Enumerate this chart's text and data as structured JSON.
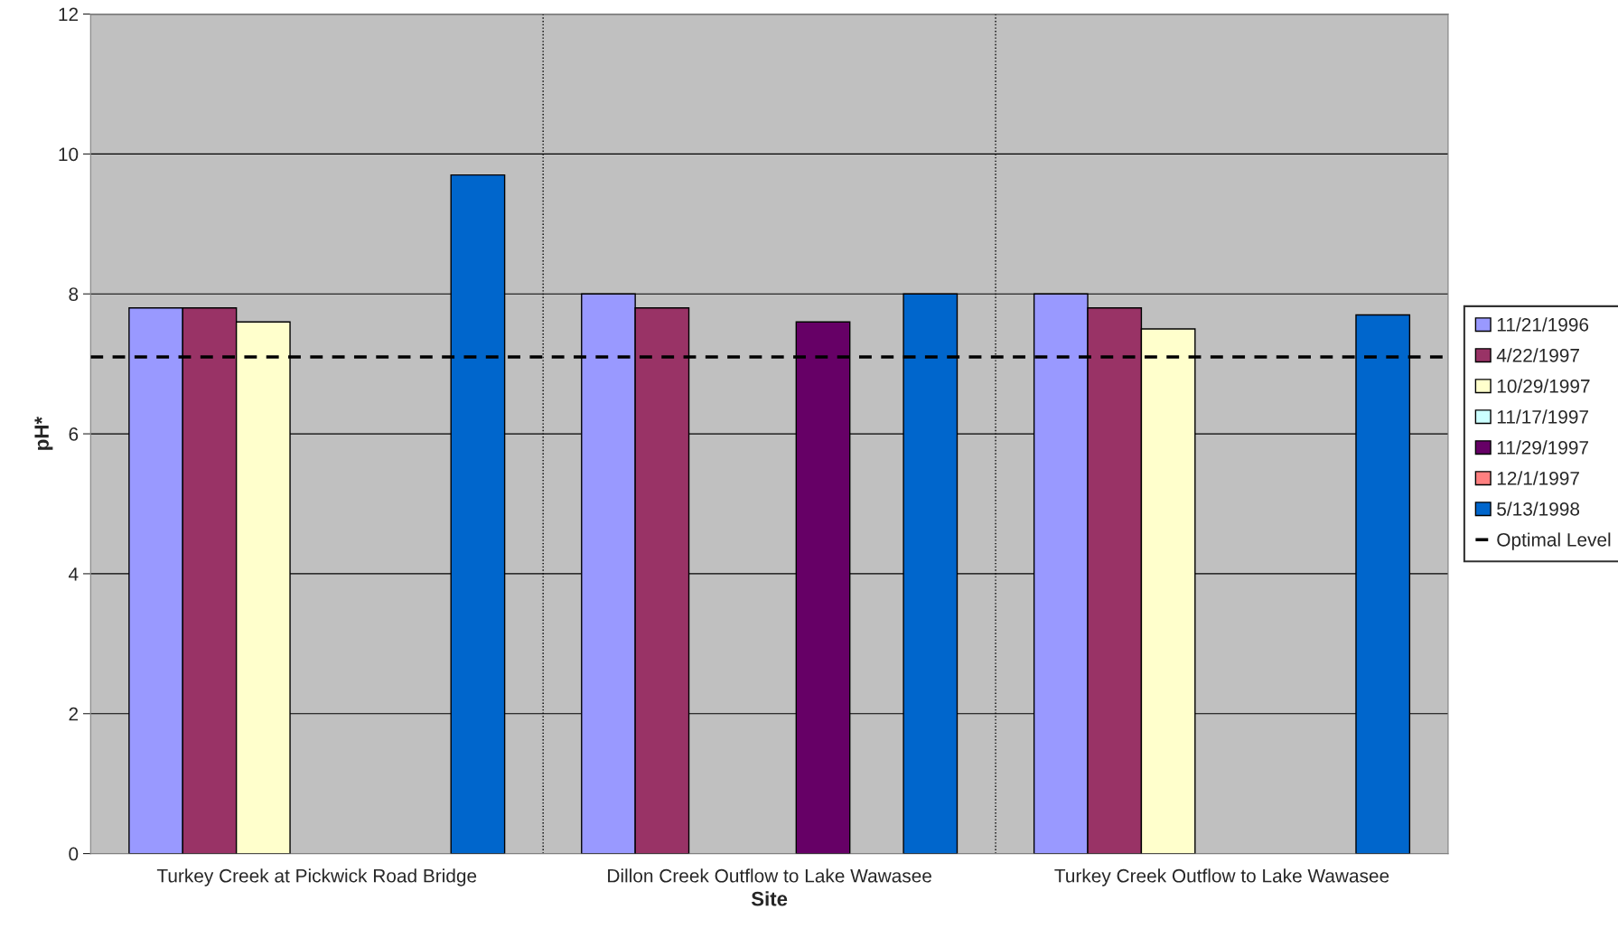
{
  "chart_data": {
    "type": "bar",
    "xlabel": "Site",
    "ylabel": "pH*",
    "categories": [
      "Turkey Creek at Pickwick Road Bridge",
      "Dillon Creek Outflow to Lake Wawasee",
      "Turkey Creek Outflow to Lake Wawasee"
    ],
    "series": [
      {
        "name": "11/21/1996",
        "color": "#9999ff",
        "values": [
          7.8,
          8.0,
          8.0
        ]
      },
      {
        "name": "4/22/1997",
        "color": "#993366",
        "values": [
          7.8,
          7.8,
          7.8
        ]
      },
      {
        "name": "10/29/1997",
        "color": "#ffffcc",
        "values": [
          7.6,
          null,
          7.5
        ]
      },
      {
        "name": "11/17/1997",
        "color": "#ccffff",
        "values": [
          null,
          null,
          null
        ]
      },
      {
        "name": "11/29/1997",
        "color": "#660066",
        "values": [
          null,
          7.6,
          null
        ]
      },
      {
        "name": "12/1/1997",
        "color": "#ff8080",
        "values": [
          null,
          null,
          null
        ]
      },
      {
        "name": "5/13/1998",
        "color": "#0066cc",
        "values": [
          9.7,
          8.0,
          7.7
        ]
      }
    ],
    "ref_lines": [
      {
        "axis": "y",
        "value": 7.1,
        "label": "Optimal Level",
        "color": "#000000",
        "line_style": "dashed"
      }
    ],
    "ylim": [
      0,
      12
    ],
    "yticks": [
      0,
      2,
      4,
      6,
      8,
      10,
      12
    ],
    "grid": true,
    "legend": "right"
  }
}
